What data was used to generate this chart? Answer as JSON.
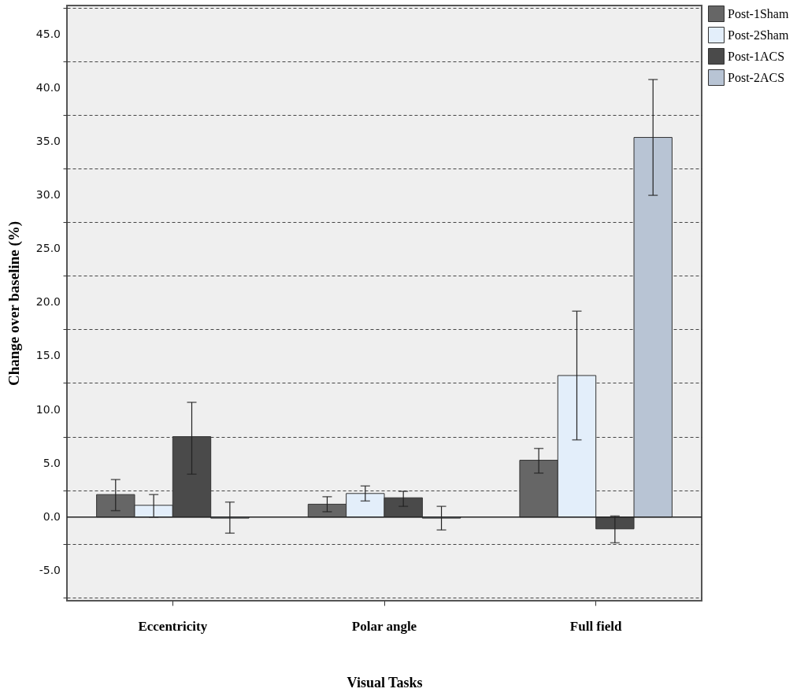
{
  "chart_data": {
    "type": "bar",
    "xlabel": "Visual Tasks",
    "ylabel": "Change over baseline (%)",
    "categories": [
      "Eccentricity",
      "Polar angle",
      "Full field"
    ],
    "series": [
      {
        "name": "Post-1Sham",
        "color": "#666666",
        "values": [
          2.1,
          1.2,
          5.3
        ],
        "errors": [
          [
            0.6,
            3.5
          ],
          [
            0.5,
            1.9
          ],
          [
            4.1,
            6.4
          ]
        ]
      },
      {
        "name": "Post-2Sham",
        "color": "#e3eefa",
        "values": [
          1.1,
          2.2,
          13.2
        ],
        "errors": [
          [
            0.0,
            2.1
          ],
          [
            1.5,
            2.9
          ],
          [
            7.2,
            19.2
          ]
        ]
      },
      {
        "name": "Post-1ACS",
        "color": "#4a4a4a",
        "values": [
          7.5,
          1.8,
          -1.1
        ],
        "errors": [
          [
            4.0,
            10.7
          ],
          [
            1.0,
            2.4
          ],
          [
            -2.4,
            0.1
          ]
        ]
      },
      {
        "name": "Post-2ACS",
        "color": "#b8c4d4",
        "values": [
          -0.1,
          -0.1,
          35.4
        ],
        "errors": [
          [
            -1.5,
            1.4
          ],
          [
            -1.2,
            1.0
          ],
          [
            30.0,
            40.8
          ]
        ]
      }
    ],
    "ylim": [
      -7.8,
      47.7
    ],
    "yticks": [
      {
        "value": -7.5,
        "label": null
      },
      {
        "value": -5,
        "label": "-5.0"
      },
      {
        "value": -2.5,
        "label": null
      },
      {
        "value": 0,
        "label": "0.0"
      },
      {
        "value": 2.5,
        "label": null
      },
      {
        "value": 5,
        "label": "5.0"
      },
      {
        "value": 7.5,
        "label": null
      },
      {
        "value": 10,
        "label": "10.0"
      },
      {
        "value": 12.5,
        "label": null
      },
      {
        "value": 15,
        "label": "15.0"
      },
      {
        "value": 17.5,
        "label": null
      },
      {
        "value": 20,
        "label": "20.0"
      },
      {
        "value": 22.5,
        "label": null
      },
      {
        "value": 25,
        "label": "25.0"
      },
      {
        "value": 27.5,
        "label": null
      },
      {
        "value": 30,
        "label": "30.0"
      },
      {
        "value": 32.5,
        "label": null
      },
      {
        "value": 35,
        "label": "35.0"
      },
      {
        "value": 37.5,
        "label": null
      },
      {
        "value": 40,
        "label": "40.0"
      },
      {
        "value": 42.5,
        "label": null
      },
      {
        "value": 45,
        "label": "45.0"
      },
      {
        "value": 47.5,
        "label": null
      }
    ],
    "ref_lines": [
      {
        "axis": "y",
        "value": 0
      }
    ],
    "grid": "y",
    "legend": "top right"
  }
}
